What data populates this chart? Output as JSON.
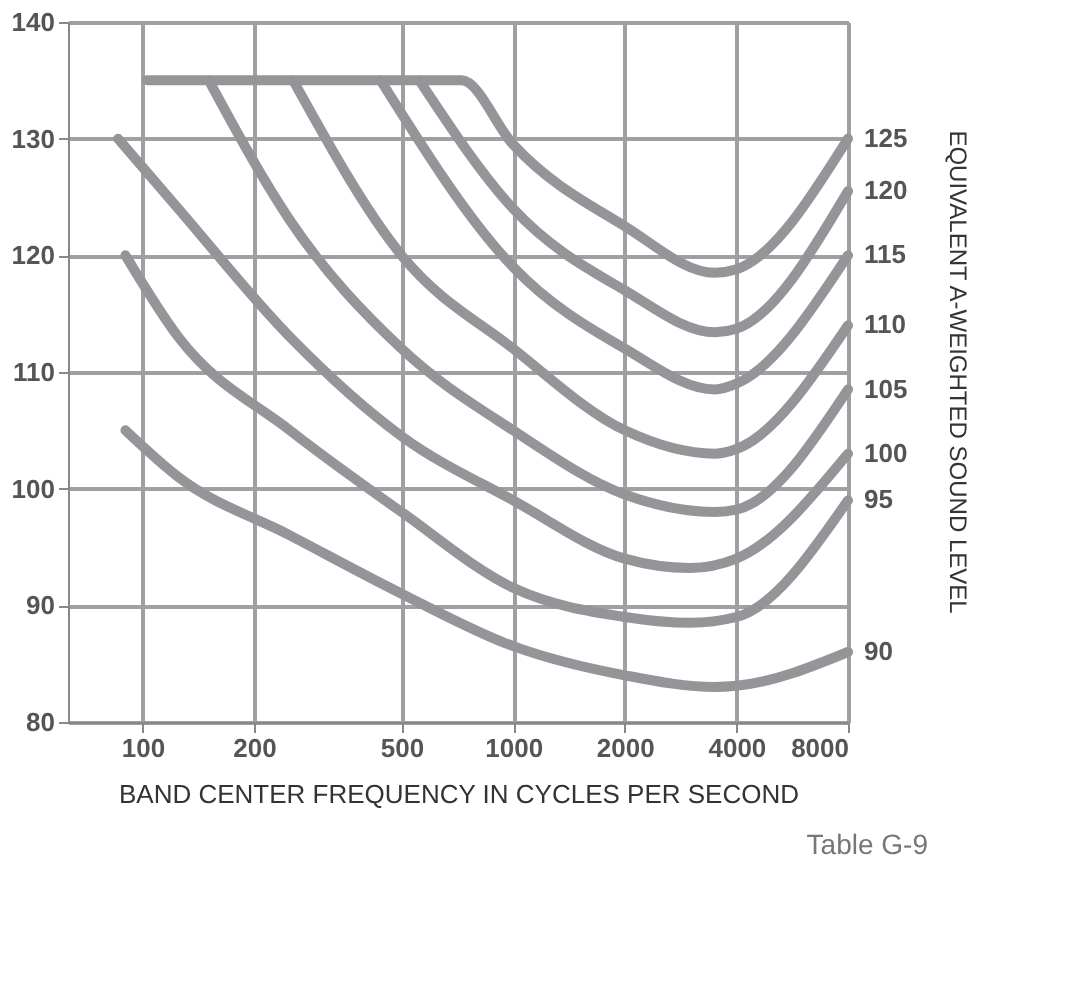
{
  "chart_data": {
    "type": "line",
    "xlabel": "BAND CENTER FREQUENCY IN CYCLES PER SECOND",
    "y2label": "EQUIVALENT A-WEIGHTED SOUND LEVEL",
    "log": "x",
    "xlim": [
      63,
      8000
    ],
    "xticks": [
      100,
      200,
      500,
      1000,
      2000,
      4000,
      8000
    ],
    "ylim": [
      80,
      140
    ],
    "yticks": [
      80,
      90,
      100,
      110,
      120,
      130,
      140
    ],
    "grid": true,
    "line_style": "solid",
    "series": [
      {
        "name": "90",
        "color": "#939598",
        "x": [
          90,
          125,
          250,
          500,
          1000,
          2000,
          3500,
          4000,
          8000
        ],
        "values": [
          105,
          101,
          96,
          91,
          86.5,
          84,
          83,
          83.1,
          86
        ]
      },
      {
        "name": "95",
        "color": "#939598",
        "x": [
          90,
          125,
          250,
          500,
          1000,
          2000,
          3000,
          4000,
          8000
        ],
        "values": [
          120,
          113,
          105,
          98,
          91.5,
          89,
          88.5,
          89,
          99
        ]
      },
      {
        "name": "100",
        "color": "#939598",
        "x": [
          86,
          125,
          250,
          500,
          1000,
          2000,
          3000,
          4000,
          8000
        ],
        "values": [
          130,
          124,
          113,
          104.5,
          99,
          94,
          93.2,
          94,
          103
        ]
      },
      {
        "name": "105",
        "color": "#939598",
        "x": [
          151,
          250,
          500,
          1000,
          2000,
          3500,
          4000,
          8000
        ],
        "values": [
          135,
          123,
          112,
          105,
          99.5,
          98,
          98.2,
          108.5
        ]
      },
      {
        "name": "110",
        "color": "#939598",
        "x": [
          255,
          500,
          1000,
          2000,
          3500,
          4000,
          8000
        ],
        "values": [
          135,
          120,
          112,
          105,
          103,
          103.4,
          114
        ]
      },
      {
        "name": "115",
        "color": "#939598",
        "x": [
          439,
          1000,
          2000,
          3500,
          4000,
          8000
        ],
        "values": [
          135,
          119,
          112,
          108.5,
          109,
          120
        ]
      },
      {
        "name": "120",
        "color": "#939598",
        "x": [
          558,
          1000,
          2000,
          3500,
          4000,
          8000
        ],
        "values": [
          135,
          124,
          117,
          113.4,
          113.7,
          125.5
        ]
      },
      {
        "name": "125",
        "color": "#939598",
        "x": [
          103,
          725,
          1000,
          2000,
          3500,
          4000,
          8000
        ],
        "values": [
          135,
          135,
          129.5,
          122.5,
          118.5,
          118.8,
          130
        ]
      }
    ],
    "annotations": [
      "Table G-9"
    ]
  }
}
